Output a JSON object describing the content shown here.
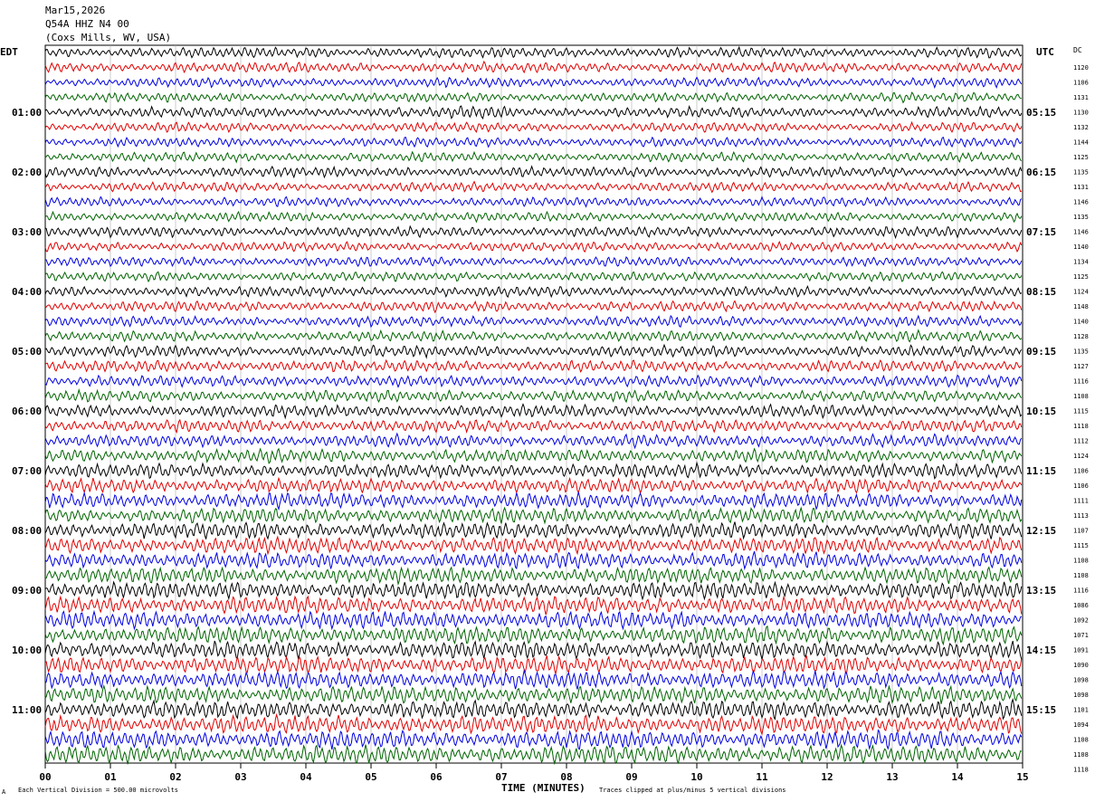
{
  "header": {
    "date": "Mar15,2026",
    "station": "Q54A HHZ N4 00",
    "location": "(Coxs Mills, WV, USA)"
  },
  "left_tz": "EDT",
  "right_tz": "UTC",
  "dc_header": "DC",
  "footer": {
    "xlabel": "TIME (MINUTES)",
    "scale_note": "Each Vertical Division =  500.00 microvolts",
    "clip_note": "Traces clipped at plus/minus 5 vertical divisions",
    "corner_mark": "A"
  },
  "colors": [
    "#000000",
    "#e00000",
    "#0000e0",
    "#006400"
  ],
  "chart_data": {
    "type": "line",
    "title": "Q54A HHZ N4 00",
    "xlabel": "TIME (MINUTES)",
    "xlim": [
      0,
      15
    ],
    "x_ticks": [
      "00",
      "01",
      "02",
      "03",
      "04",
      "05",
      "06",
      "07",
      "08",
      "09",
      "10",
      "11",
      "12",
      "13",
      "14",
      "15"
    ],
    "minutes_per_line": 15,
    "left_time_labels": [
      "01:00",
      "02:00",
      "03:00",
      "04:00",
      "05:00",
      "06:00",
      "07:00",
      "08:00",
      "09:00",
      "10:00",
      "11:00"
    ],
    "right_time_labels": [
      "05:15",
      "06:15",
      "07:15",
      "08:15",
      "09:15",
      "10:15",
      "11:15",
      "12:15",
      "13:15",
      "14:15",
      "15:15"
    ],
    "dc_offsets": [
      1120,
      1106,
      1131,
      1130,
      1132,
      1144,
      1125,
      1135,
      1131,
      1146,
      1135,
      1146,
      1140,
      1134,
      1125,
      1124,
      1148,
      1140,
      1128,
      1135,
      1127,
      1116,
      1108,
      1115,
      1118,
      1112,
      1124,
      1106,
      1106,
      1111,
      1113,
      1107,
      1115,
      1108,
      1108,
      1116,
      1086,
      1092,
      1071,
      1091,
      1090,
      1098,
      1098,
      1101,
      1094,
      1108,
      1108,
      1118
    ],
    "relative_amplitude": [
      0.55,
      0.55,
      0.5,
      0.5,
      0.55,
      0.5,
      0.5,
      0.5,
      0.55,
      0.5,
      0.5,
      0.5,
      0.55,
      0.5,
      0.5,
      0.5,
      0.55,
      0.55,
      0.55,
      0.55,
      0.6,
      0.6,
      0.6,
      0.6,
      0.65,
      0.65,
      0.65,
      0.7,
      0.75,
      0.75,
      0.8,
      0.8,
      0.85,
      0.85,
      0.85,
      0.85,
      0.9,
      0.9,
      0.9,
      0.9,
      0.9,
      0.9,
      0.9,
      0.9,
      0.95,
      0.95,
      0.95,
      0.95
    ],
    "events": [
      {
        "line": 4,
        "start_minute": 6.3,
        "end_minute": 7.1
      }
    ],
    "grid": true
  }
}
